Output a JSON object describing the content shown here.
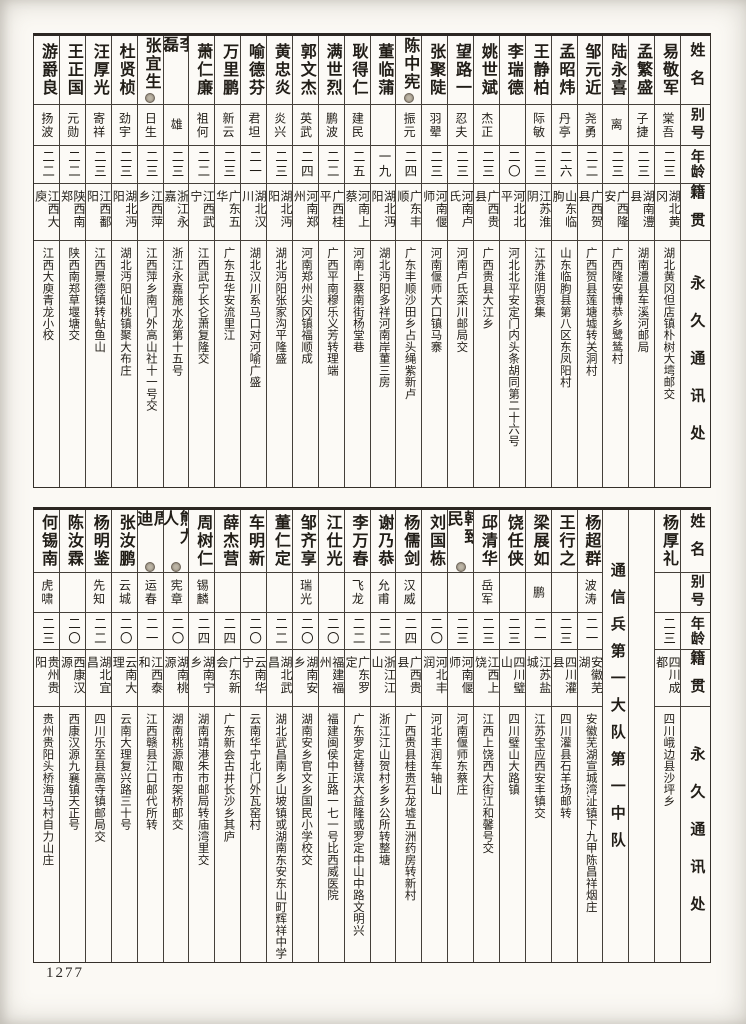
{
  "page": {
    "number": "1277",
    "paper_color": "#fbf9f4",
    "ink_color": "#211d17",
    "line_color": "#45403a"
  },
  "header_labels": [
    "姓名",
    "别号",
    "年龄",
    "籍贯",
    "永久通讯处"
  ],
  "unit_divider": "通信兵第一大队第一中队",
  "tables": [
    {
      "name": "top-roster",
      "columns": [
        {
          "type": "header"
        },
        {
          "type": "person",
          "name": "易敬军",
          "alias": "棠吾",
          "age": "二三",
          "native": "湖北黄冈",
          "addr": "湖北黄冈但店镇朴树大塆邮交"
        },
        {
          "type": "person",
          "name": "孟繁盛",
          "alias": "子捷",
          "age": "二三",
          "native": "湖南澧县",
          "addr": "湖南澧县车溪河邮局"
        },
        {
          "type": "person",
          "name": "陆永喜",
          "alias": "离",
          "age": "二三",
          "native": "广西隆安",
          "addr": "广西隆安博恭乡鹭鸶村"
        },
        {
          "type": "person",
          "name": "邹元近",
          "alias": "尧勇",
          "age": "二二",
          "native": "广西贺县",
          "addr": "广西贺县莲塘墟转关洞村"
        },
        {
          "type": "person",
          "name": "孟昭炜",
          "alias": "丹亭",
          "age": "二六",
          "native": "山东临朐",
          "addr": "山东临朐县第八区东凤阳村"
        },
        {
          "type": "person",
          "name": "王静柏",
          "alias": "际敏",
          "age": "二三",
          "native": "江苏淮阴",
          "addr": "江苏淮阴袁集"
        },
        {
          "type": "person",
          "name": "李瑞德",
          "alias": "",
          "age": "二〇",
          "native": "河北北平",
          "addr": "河北北平安定门内头条胡同第二十六号"
        },
        {
          "type": "person",
          "name": "姚世斌",
          "alias": "杰正",
          "age": "二三",
          "native": "广西贵县",
          "addr": "广西贵县大江乡"
        },
        {
          "type": "person",
          "name": "望路一",
          "alias": "忍夫",
          "age": "二三",
          "native": "河南卢氏",
          "addr": "河南卢氏栾川邮局交"
        },
        {
          "type": "person",
          "name": "张聚陡",
          "alias": "羽翚",
          "age": "二三",
          "native": "河南偃师",
          "addr": "河南偃师大口镇马寨"
        },
        {
          "type": "person",
          "name": "陈中宪",
          "alias": "振元",
          "age": "二四",
          "native": "广东丰顺",
          "addr": "广东丰顺沙田乡占头绳紫新卢",
          "mark": true
        },
        {
          "type": "person",
          "name": "董临蒲",
          "alias": "",
          "age": "一九",
          "native": "湖北沔阳",
          "addr": "湖北沔阳多祥河南岸董三房"
        },
        {
          "type": "person",
          "name": "耿得仁",
          "alias": "建民",
          "age": "二五",
          "native": "河南上蔡",
          "addr": "河南上蔡南街杨堂巷"
        },
        {
          "type": "person",
          "name": "满世烈",
          "alias": "鹏波",
          "age": "二二",
          "native": "广西桂平",
          "addr": "广西平南穆乐义芳转理端"
        },
        {
          "type": "person",
          "name": "郭文杰",
          "alias": "英武",
          "age": "二四",
          "native": "河南郑州",
          "addr": "河南郑州尖冈镇福顺成"
        },
        {
          "type": "person",
          "name": "黄忠炎",
          "alias": "炎兴",
          "age": "二三",
          "native": "湖北沔阳",
          "addr": "湖北沔阳张家沟平隆盛"
        },
        {
          "type": "person",
          "name": "喻德芬",
          "alias": "君坦",
          "age": "二一",
          "native": "湖北汉川",
          "addr": "湖北汉川系马口对河喻广盛"
        },
        {
          "type": "person",
          "name": "万里鹏",
          "alias": "新云",
          "age": "二三",
          "native": "广东五华",
          "addr": "广东五华安流里江"
        },
        {
          "type": "person",
          "name": "萧仁廉",
          "alias": "祖何",
          "age": "二二",
          "native": "江西武宁",
          "addr": "江西武宁长仑萧复隆交"
        },
        {
          "type": "person",
          "name": "李磊",
          "alias": "雄",
          "age": "二三",
          "native": "浙江永嘉",
          "addr": "浙江永嘉施水龙第十五号"
        },
        {
          "type": "person",
          "name": "张宜生",
          "alias": "日生",
          "age": "二三",
          "native": "江西萍乡",
          "addr": "江西萍乡南门外高山社十一号交",
          "mark": true
        },
        {
          "type": "person",
          "name": "杜贤桢",
          "alias": "劲宇",
          "age": "二三",
          "native": "湖北沔阳",
          "addr": "湖北沔阳仙桃镇聚大布庄"
        },
        {
          "type": "person",
          "name": "汪厚光",
          "alias": "寄祥",
          "age": "二三",
          "native": "江西鄱阳",
          "addr": "江西景德镇转鲇鱼山"
        },
        {
          "type": "person",
          "name": "王正国",
          "alias": "元勋",
          "age": "二二",
          "native": "陕西南郑",
          "addr": "陕西南郑草堰塘交"
        },
        {
          "type": "person",
          "name": "游爵良",
          "alias": "扬波",
          "age": "二二",
          "native": "江西大庾",
          "addr": "江西大庾青龙小校"
        }
      ]
    },
    {
      "name": "bottom-roster",
      "columns": [
        {
          "type": "header"
        },
        {
          "type": "person",
          "name": "杨厚礼",
          "alias": "",
          "age": "二三",
          "native": "四川成都",
          "addr": "四川峨边县沙坪乡"
        },
        {
          "type": "spacer"
        },
        {
          "type": "unit-title",
          "text": "通信兵第一大队第一中队"
        },
        {
          "type": "person",
          "name": "杨超群",
          "alias": "波涛",
          "age": "二一",
          "native": "安徽芜湖",
          "addr": "安徽芜湖宣城湾沚镇下九甲陈昌祥烟庄"
        },
        {
          "type": "person",
          "name": "王行之",
          "alias": "",
          "age": "二三",
          "native": "四川灌县",
          "addr": "四川灌县石羊场邮转"
        },
        {
          "type": "person",
          "name": "梁展如",
          "alias": "鹏",
          "age": "二一",
          "native": "江苏盐城",
          "addr": "江苏宝应西安丰镇交"
        },
        {
          "type": "person",
          "name": "饶任侠",
          "alias": "",
          "age": "二三",
          "native": "四川璧山",
          "addr": "四川璧山大路镇"
        },
        {
          "type": "person",
          "name": "邱清华",
          "alias": "岳军",
          "age": "二三",
          "native": "江西上饶",
          "addr": "江西上饶西大街江和馨号交"
        },
        {
          "type": "person",
          "name": "韩致民",
          "alias": "",
          "age": "二三",
          "native": "河南偃师",
          "addr": "河南偃师东蔡庄",
          "mark": true
        },
        {
          "type": "person",
          "name": "刘国栋",
          "alias": "",
          "age": "二〇",
          "native": "河北丰润",
          "addr": "河北丰润车轴山"
        },
        {
          "type": "person",
          "name": "杨儒剑",
          "alias": "汉威",
          "age": "二四",
          "native": "广西贵县",
          "addr": "广西贵县桂贵石龙墟五洲药房转新村"
        },
        {
          "type": "person",
          "name": "谢乃恭",
          "alias": "允甫",
          "age": "二二",
          "native": "浙江江山",
          "addr": "浙江江山贺村乡乡公所转整塘"
        },
        {
          "type": "person",
          "name": "李万春",
          "alias": "飞龙",
          "age": "二二",
          "native": "广东罗定",
          "addr": "广东罗定替滨大益隆或罗定中山中路文明兴"
        },
        {
          "type": "person",
          "name": "江仕光",
          "alias": "",
          "age": "二〇",
          "native": "福建福州",
          "addr": "福建闽侯中正路一七一号比西威医院"
        },
        {
          "type": "person",
          "name": "邹齐享",
          "alias": "瑞光",
          "age": "二〇",
          "native": "湖南安乡",
          "addr": "湖南安乡官文乡国民小学校交"
        },
        {
          "type": "person",
          "name": "董仁定",
          "alias": "",
          "age": "二二",
          "native": "湖北武昌",
          "addr": "湖北武昌南乡山坡镇或湖南东安东山町辉祥中学"
        },
        {
          "type": "person",
          "name": "车明新",
          "alias": "",
          "age": "二〇",
          "native": "云南华宁",
          "addr": "云南华宁北门外瓦窑村"
        },
        {
          "type": "person",
          "name": "薛杰营",
          "alias": "",
          "age": "二四",
          "native": "广东新会",
          "addr": "广东新会古井长沙乡其庐"
        },
        {
          "type": "person",
          "name": "周树仁",
          "alias": "锡麟",
          "age": "二四",
          "native": "湖南宁乡",
          "addr": "湖南靖港朱市邮局转庙湾里交"
        },
        {
          "type": "person",
          "name": "熊力人",
          "alias": "宪章",
          "age": "二〇",
          "native": "湖南桃源",
          "addr": "湖南桃源陬市架桥邮交",
          "mark": true
        },
        {
          "type": "person",
          "name": "周迪",
          "alias": "运春",
          "age": "二一",
          "native": "江西泰和",
          "addr": "江西赣县江口邮代所转",
          "mark": true
        },
        {
          "type": "person",
          "name": "张汝鹏",
          "alias": "云城",
          "age": "二〇",
          "native": "云南大理",
          "addr": "云南大理复兴路三十号"
        },
        {
          "type": "person",
          "name": "杨明鉴",
          "alias": "先知",
          "age": "二二",
          "native": "湖北宜昌",
          "addr": "四川乐至县高寺镇邮局交"
        },
        {
          "type": "person",
          "name": "陈汝霖",
          "alias": "",
          "age": "二〇",
          "native": "西康汉源",
          "addr": "西康汉源九襄镇天正号"
        },
        {
          "type": "person",
          "name": "何锡南",
          "alias": "虎啸",
          "age": "二三",
          "native": "贵州贵阳",
          "addr": "贵州贵阳头桥海马村自力山庄"
        }
      ]
    }
  ]
}
